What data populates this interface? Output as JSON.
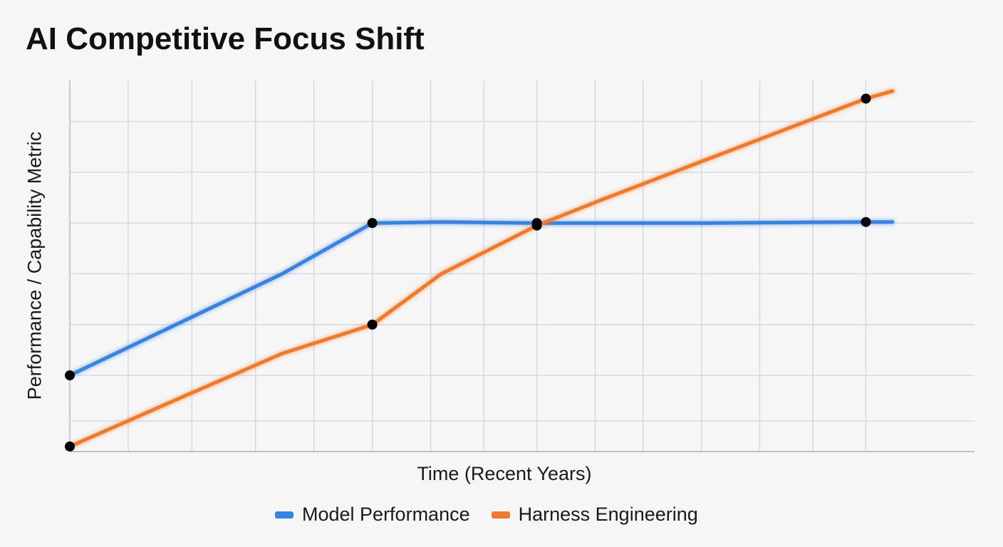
{
  "chart_data": {
    "type": "line",
    "title": "AI Competitive Focus Shift",
    "xlabel": "Time (Recent Years)",
    "ylabel": "Performance / Capability Metric",
    "grid": true,
    "legend_position": "bottom-center",
    "xlim": [
      0,
      16
    ],
    "ylim": [
      0,
      7.3
    ],
    "x_gridlines": [
      0,
      1.1,
      2.3,
      3.5,
      4.6,
      5.7,
      6.8,
      7.8,
      8.8,
      9.9,
      10.8,
      11.9,
      13,
      14,
      15
    ],
    "y_gridlines": [
      0,
      0.6,
      1.5,
      2.5,
      3.5,
      4.5,
      5.5,
      6.5
    ],
    "series": [
      {
        "name": "Model Performance",
        "color": "#3a82e0",
        "x": [
          0,
          2,
          4,
          5.7,
          7,
          8.8,
          10,
          12,
          15,
          15.5
        ],
        "y": [
          1.5,
          2.5,
          3.5,
          4.5,
          4.52,
          4.5,
          4.5,
          4.5,
          4.52,
          4.52
        ],
        "markers_at_index": [
          0,
          3,
          5,
          8
        ]
      },
      {
        "name": "Harness Engineering",
        "color": "#f07a2c",
        "x": [
          0,
          2,
          4,
          5.7,
          7,
          8.8,
          10,
          12,
          15,
          15.5
        ],
        "y": [
          0.1,
          1.02,
          1.93,
          2.5,
          3.5,
          4.45,
          4.95,
          5.75,
          6.95,
          7.1
        ],
        "markers_at_index": [
          0,
          3,
          5,
          8
        ]
      }
    ]
  }
}
